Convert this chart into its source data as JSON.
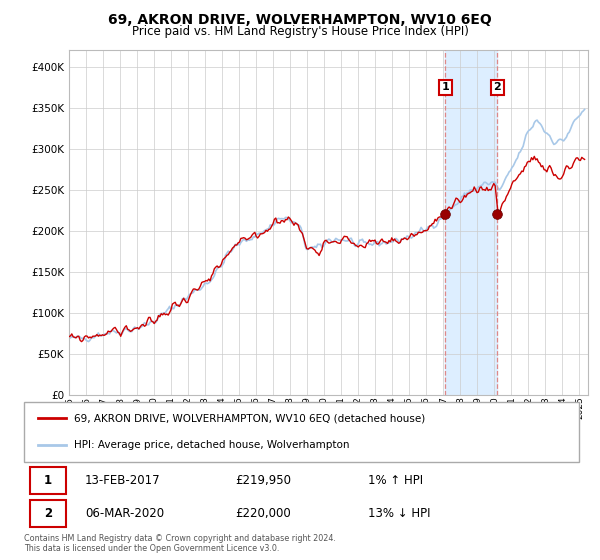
{
  "title": "69, AKRON DRIVE, WOLVERHAMPTON, WV10 6EQ",
  "subtitle": "Price paid vs. HM Land Registry's House Price Index (HPI)",
  "legend_line1": "69, AKRON DRIVE, WOLVERHAMPTON, WV10 6EQ (detached house)",
  "legend_line2": "HPI: Average price, detached house, Wolverhampton",
  "sale1_date": "13-FEB-2017",
  "sale1_price": 219950,
  "sale1_hpi_text": "1% ↑ HPI",
  "sale2_date": "06-MAR-2020",
  "sale2_price": 220000,
  "sale2_hpi_text": "13% ↓ HPI",
  "footnote_line1": "Contains HM Land Registry data © Crown copyright and database right 2024.",
  "footnote_line2": "This data is licensed under the Open Government Licence v3.0.",
  "hpi_color": "#a8c8e8",
  "sale_color": "#cc0000",
  "marker_color": "#990000",
  "grid_color": "#cccccc",
  "highlight_color": "#ddeeff",
  "vline_color": "#dd8888",
  "ylim_min": 0,
  "ylim_max": 420000,
  "yticks": [
    0,
    50000,
    100000,
    150000,
    200000,
    250000,
    300000,
    350000,
    400000
  ],
  "sale1_year": 2017.12,
  "sale2_year": 2020.17,
  "hpi_anchors_x": [
    1995.0,
    1996.0,
    1997.0,
    1998.0,
    1999.5,
    2001.0,
    2002.0,
    2003.5,
    2004.5,
    2005.5,
    2006.5,
    2007.5,
    2008.5,
    2009.0,
    2009.5,
    2010.5,
    2011.5,
    2012.0,
    2013.0,
    2014.0,
    2015.0,
    2016.0,
    2016.5,
    2017.1,
    2017.5,
    2018.0,
    2018.5,
    2019.0,
    2019.5,
    2020.0,
    2020.25,
    2020.5,
    2021.0,
    2021.5,
    2022.0,
    2022.3,
    2022.5,
    2022.8,
    2023.0,
    2023.2,
    2023.5,
    2023.8,
    2024.0,
    2024.3,
    2024.5,
    2024.8,
    2025.0,
    2025.3
  ],
  "hpi_anchors_y": [
    68000,
    70000,
    75000,
    78000,
    85000,
    105000,
    120000,
    145000,
    175000,
    190000,
    200000,
    215000,
    205000,
    180000,
    178000,
    190000,
    188000,
    182000,
    185000,
    187000,
    193000,
    202000,
    210000,
    220000,
    228000,
    237000,
    248000,
    252000,
    257000,
    258000,
    250000,
    255000,
    275000,
    295000,
    320000,
    330000,
    335000,
    328000,
    320000,
    318000,
    310000,
    308000,
    310000,
    318000,
    325000,
    335000,
    340000,
    350000
  ],
  "prop_anchors_x": [
    1995.0,
    1996.0,
    1997.0,
    1998.0,
    1999.5,
    2001.0,
    2002.0,
    2003.5,
    2004.5,
    2005.5,
    2006.5,
    2007.5,
    2008.5,
    2009.0,
    2009.5,
    2010.5,
    2011.5,
    2012.0,
    2013.0,
    2014.0,
    2015.0,
    2016.0,
    2016.5,
    2017.1,
    2017.5,
    2018.0,
    2018.5,
    2019.0,
    2019.5,
    2020.0,
    2020.25,
    2020.5,
    2021.0,
    2021.5,
    2022.0,
    2022.3,
    2022.5,
    2022.8,
    2023.0,
    2023.3,
    2023.5,
    2023.8,
    2024.0,
    2024.3,
    2024.5,
    2024.8,
    2025.0,
    2025.3
  ],
  "prop_anchors_y": [
    68000,
    70000,
    75000,
    78000,
    85000,
    105000,
    120000,
    145000,
    175000,
    190000,
    200000,
    215000,
    205000,
    180000,
    178000,
    190000,
    188000,
    182000,
    185000,
    187000,
    193000,
    202000,
    210000,
    218000,
    225000,
    235000,
    248000,
    250000,
    253000,
    255000,
    222000,
    235000,
    255000,
    270000,
    280000,
    290000,
    285000,
    278000,
    270000,
    275000,
    268000,
    265000,
    268000,
    278000,
    280000,
    285000,
    288000,
    293000
  ]
}
